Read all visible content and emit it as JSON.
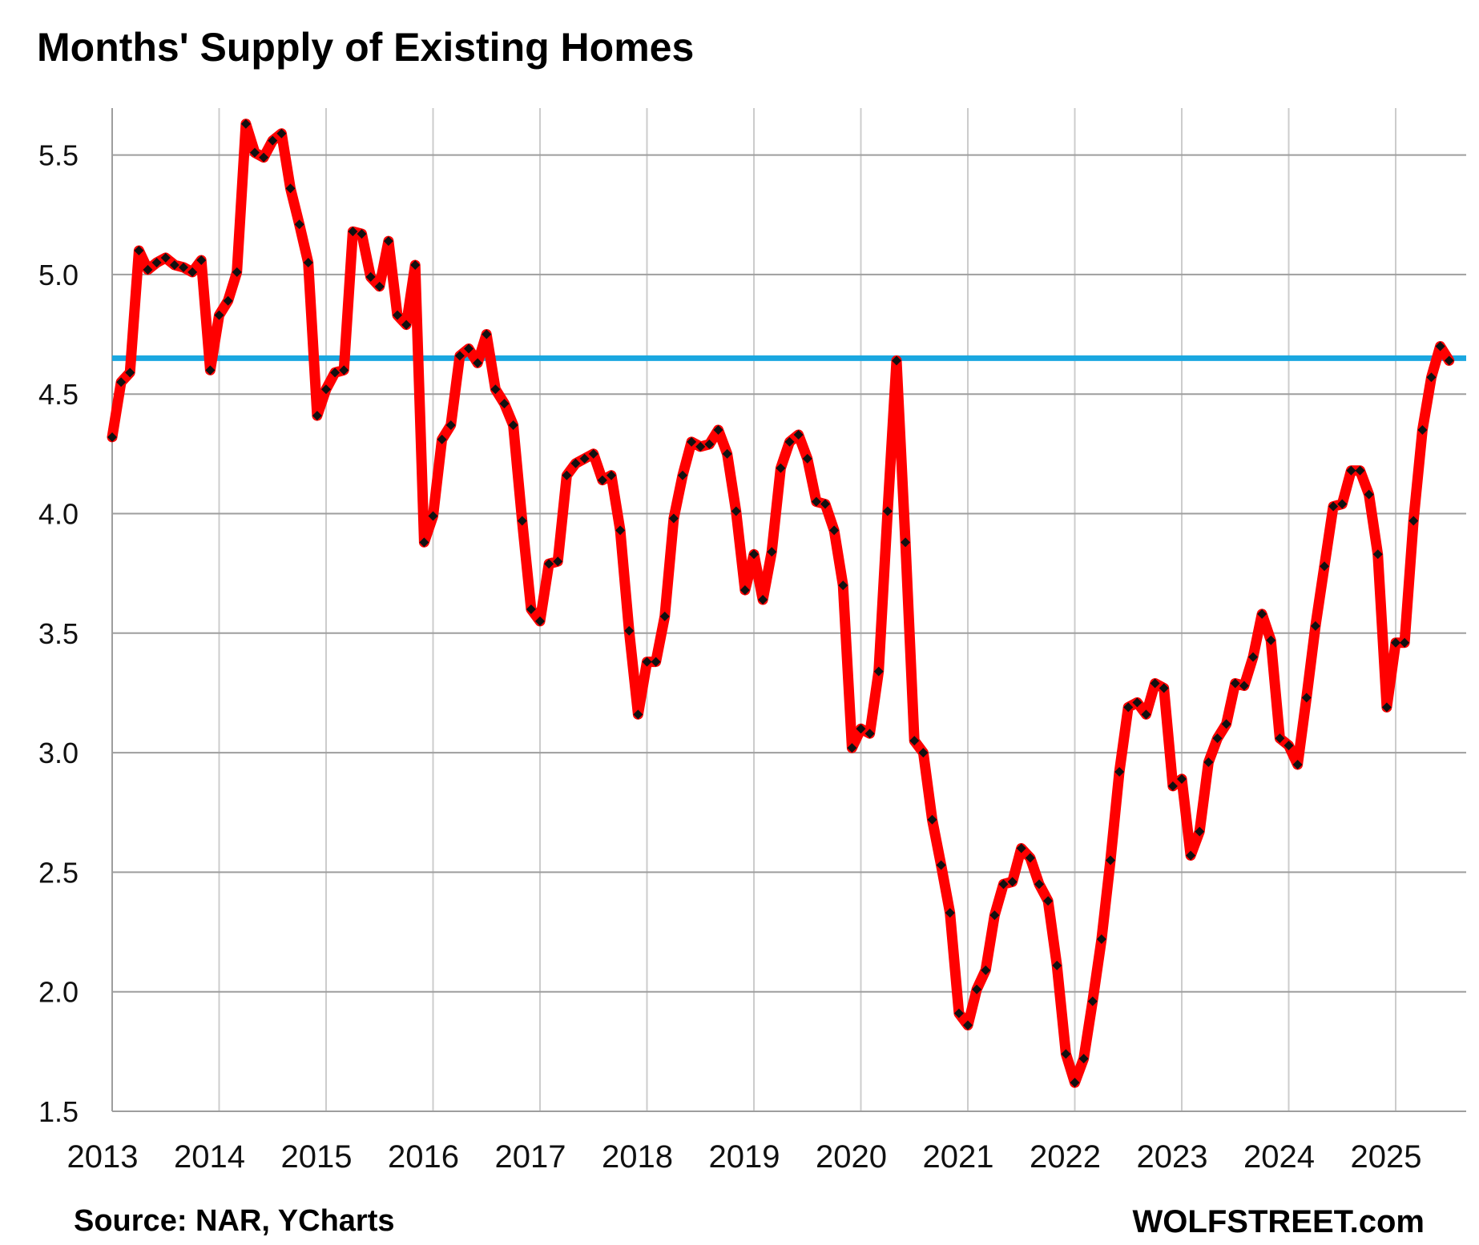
{
  "header": {
    "title": "Months' Supply of Existing Homes"
  },
  "footer": {
    "source": "Source: NAR, YCharts",
    "brand": "WOLFSTREET.com"
  },
  "colors": {
    "series": "#ff0000",
    "markers": "#111111",
    "reference": "#1aa7e0",
    "grid": "#9e9e9e",
    "vgrid": "#cccccc"
  },
  "chart_data": {
    "type": "line",
    "title": "Months' Supply of Existing Homes",
    "xlabel": "",
    "ylabel": "",
    "xlim": [
      2013,
      2025.58
    ],
    "ylim": [
      1.5,
      5.75
    ],
    "y_ticks": [
      1.5,
      2.0,
      2.5,
      3.0,
      3.5,
      4.0,
      4.5,
      5.0,
      5.5
    ],
    "y_tick_labels": [
      "1.5",
      "2.0",
      "2.5",
      "3.0",
      "3.5",
      "4.0",
      "4.5",
      "5.0",
      "5.5"
    ],
    "x_ticks": [
      2013,
      2014,
      2015,
      2016,
      2017,
      2018,
      2019,
      2020,
      2021,
      2022,
      2023,
      2024,
      2025
    ],
    "x_tick_labels": [
      "2013",
      "2014",
      "2015",
      "2016",
      "2017",
      "2018",
      "2019",
      "2020",
      "2021",
      "2022",
      "2023",
      "2024",
      "2025"
    ],
    "grid": {
      "horizontal": true,
      "vertical": true
    },
    "reference_line": {
      "y": 4.65,
      "color": "#1aa7e0"
    },
    "series": [
      {
        "color": "#ff0000",
        "x_start": 2013,
        "x_step": 0.08333333,
        "values": [
          4.32,
          4.55,
          4.59,
          5.1,
          5.02,
          5.05,
          5.07,
          5.04,
          5.03,
          5.01,
          5.06,
          4.6,
          4.83,
          4.89,
          5.01,
          5.63,
          5.51,
          5.49,
          5.56,
          5.59,
          5.36,
          5.21,
          5.05,
          4.41,
          4.52,
          4.59,
          4.6,
          5.18,
          5.17,
          4.99,
          4.95,
          5.14,
          4.83,
          4.79,
          5.04,
          3.88,
          3.99,
          4.31,
          4.37,
          4.66,
          4.69,
          4.63,
          4.75,
          4.52,
          4.46,
          4.37,
          3.97,
          3.6,
          3.55,
          3.79,
          3.8,
          4.16,
          4.21,
          4.23,
          4.25,
          4.14,
          4.16,
          3.93,
          3.51,
          3.16,
          3.38,
          3.38,
          3.57,
          3.98,
          4.16,
          4.3,
          4.28,
          4.29,
          4.35,
          4.25,
          4.01,
          3.68,
          3.83,
          3.64,
          3.84,
          4.19,
          4.3,
          4.33,
          4.23,
          4.05,
          4.04,
          3.93,
          3.7,
          3.02,
          3.1,
          3.08,
          3.34,
          4.01,
          4.64,
          3.88,
          3.05,
          3.0,
          2.72,
          2.53,
          2.33,
          1.91,
          1.86,
          2.01,
          2.09,
          2.32,
          2.45,
          2.46,
          2.6,
          2.56,
          2.45,
          2.38,
          2.11,
          1.74,
          1.62,
          1.72,
          1.96,
          2.22,
          2.55,
          2.92,
          3.19,
          3.21,
          3.16,
          3.29,
          3.27,
          2.86,
          2.89,
          2.57,
          2.67,
          2.96,
          3.06,
          3.12,
          3.29,
          3.28,
          3.4,
          3.58,
          3.47,
          3.06,
          3.03,
          2.95,
          3.23,
          3.53,
          3.78,
          4.03,
          4.04,
          4.18,
          4.18,
          4.08,
          3.83,
          3.19,
          3.46,
          3.46,
          3.97,
          4.35,
          4.57,
          4.7,
          4.64
        ]
      }
    ]
  }
}
